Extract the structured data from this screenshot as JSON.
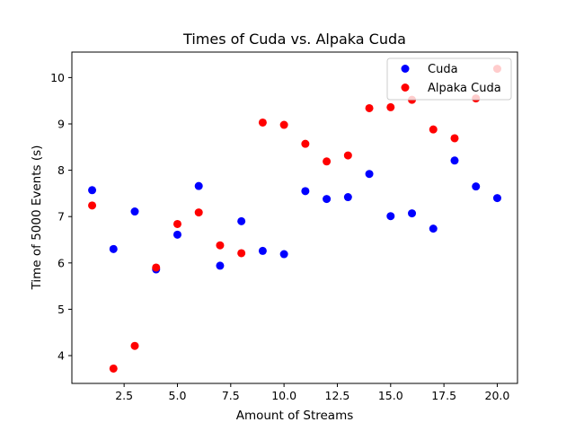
{
  "chart_data": {
    "type": "scatter",
    "title": "Times of Cuda vs. Alpaka Cuda",
    "xlabel": "Amount of Streams",
    "ylabel": "Time of 5000 Events (s)",
    "xlim": [
      0.05,
      20.95
    ],
    "ylim": [
      3.4,
      10.55
    ],
    "xticks": [
      2.5,
      5.0,
      7.5,
      10.0,
      12.5,
      15.0,
      17.5,
      20.0
    ],
    "xtick_labels": [
      "2.5",
      "5.0",
      "7.5",
      "10.0",
      "12.5",
      "15.0",
      "17.5",
      "20.0"
    ],
    "yticks": [
      4,
      5,
      6,
      7,
      8,
      9,
      10
    ],
    "ytick_labels": [
      "4",
      "5",
      "6",
      "7",
      "8",
      "9",
      "10"
    ],
    "grid": false,
    "legend_position": "top-right",
    "series": [
      {
        "name": "Cuda",
        "color": "#0000ff",
        "x": [
          1,
          2,
          3,
          4,
          5,
          6,
          7,
          8,
          9,
          10,
          11,
          12,
          13,
          14,
          15,
          16,
          17,
          18,
          19,
          20
        ],
        "y": [
          7.57,
          6.3,
          7.11,
          5.86,
          6.61,
          7.66,
          5.94,
          6.9,
          6.26,
          6.19,
          7.55,
          7.38,
          7.42,
          7.92,
          7.01,
          7.07,
          6.74,
          8.21,
          7.65,
          7.4
        ]
      },
      {
        "name": "Alpaka Cuda",
        "color": "#ff0000",
        "x": [
          1,
          2,
          3,
          4,
          5,
          6,
          7,
          8,
          9,
          10,
          11,
          12,
          13,
          14,
          15,
          16,
          17,
          18,
          19,
          20
        ],
        "y": [
          7.24,
          3.72,
          4.21,
          5.9,
          6.84,
          7.09,
          6.38,
          6.21,
          9.03,
          8.98,
          8.57,
          8.19,
          8.32,
          9.34,
          9.36,
          9.52,
          8.88,
          8.69,
          9.55,
          10.19
        ]
      }
    ]
  }
}
